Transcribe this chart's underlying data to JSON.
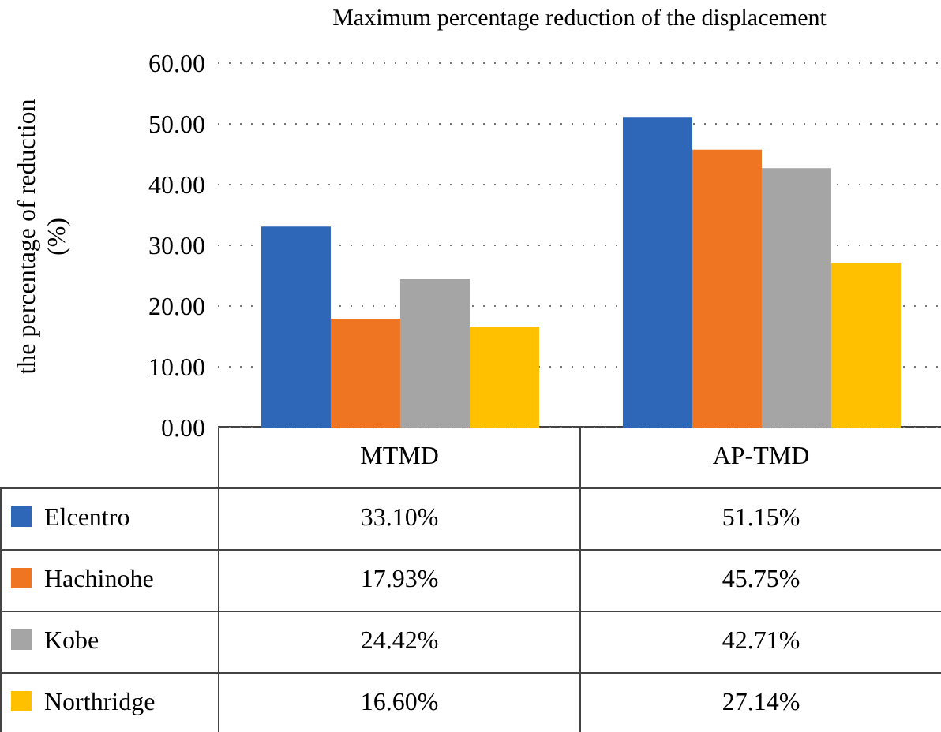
{
  "chart_data": {
    "type": "bar",
    "title": "Maximum percentage reduction of the displacement",
    "ylabel": "the percentage of reduction (%)",
    "categories": [
      "MTMD",
      "AP-TMD"
    ],
    "series": [
      {
        "name": "Elcentro",
        "color": "#2e67b8",
        "values": [
          33.1,
          51.15
        ],
        "value_labels": [
          "33.10%",
          "51.15%"
        ]
      },
      {
        "name": "Hachinohe",
        "color": "#ef7522",
        "values": [
          17.93,
          45.75
        ],
        "value_labels": [
          "17.93%",
          "45.75%"
        ]
      },
      {
        "name": "Kobe",
        "color": "#a5a5a5",
        "values": [
          24.42,
          42.71
        ],
        "value_labels": [
          "24.42%",
          "42.71%"
        ]
      },
      {
        "name": "Northridge",
        "color": "#ffc000",
        "values": [
          16.6,
          27.14
        ],
        "value_labels": [
          "16.60%",
          "27.14%"
        ]
      }
    ],
    "ylim": [
      0,
      60
    ],
    "yticks": [
      {
        "value": 0,
        "label": "0.00"
      },
      {
        "value": 10,
        "label": "10.00"
      },
      {
        "value": 20,
        "label": "20.00"
      },
      {
        "value": 30,
        "label": "30.00"
      },
      {
        "value": 40,
        "label": "40.00"
      },
      {
        "value": 50,
        "label": "50.00"
      },
      {
        "value": 60,
        "label": "60.00"
      }
    ],
    "grid": "y",
    "legend": "bottom"
  }
}
